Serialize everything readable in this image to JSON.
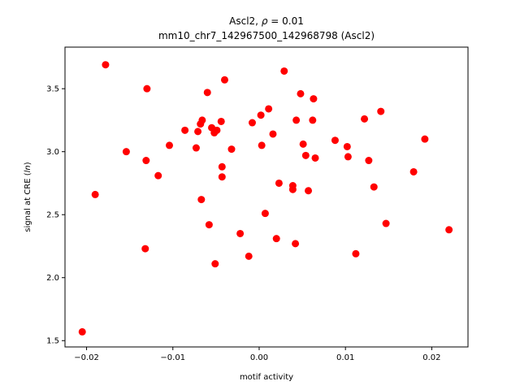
{
  "chart_data": {
    "type": "scatter",
    "title_prefix": "Ascl2, ",
    "title_rho": "ρ",
    "title_suffix": " = 0.01",
    "subtitle": "mm10_chr7_142967500_142968798 (Ascl2)",
    "xlabel": "motif activity",
    "ylabel_prefix": "signal at CRE (",
    "ylabel_italic": "ln",
    "ylabel_suffix": ")",
    "xlim": [
      -0.0225,
      0.0242
    ],
    "ylim": [
      1.45,
      3.83
    ],
    "xticks": [
      {
        "value": -0.02,
        "label": "−0.02"
      },
      {
        "value": -0.01,
        "label": "−0.01"
      },
      {
        "value": 0.0,
        "label": "0.00"
      },
      {
        "value": 0.01,
        "label": "0.01"
      },
      {
        "value": 0.02,
        "label": "0.02"
      }
    ],
    "yticks": [
      {
        "value": 1.5,
        "label": "1.5"
      },
      {
        "value": 2.0,
        "label": "2.0"
      },
      {
        "value": 2.5,
        "label": "2.5"
      },
      {
        "value": 3.0,
        "label": "3.0"
      },
      {
        "value": 3.5,
        "label": "3.5"
      }
    ],
    "grid": false,
    "marker_color": "#ff0000",
    "points": [
      {
        "x": -0.0205,
        "y": 1.57
      },
      {
        "x": -0.019,
        "y": 2.66
      },
      {
        "x": -0.0178,
        "y": 3.69
      },
      {
        "x": -0.0154,
        "y": 3.0
      },
      {
        "x": -0.013,
        "y": 3.5
      },
      {
        "x": -0.0131,
        "y": 2.93
      },
      {
        "x": -0.0132,
        "y": 2.23
      },
      {
        "x": -0.0117,
        "y": 2.81
      },
      {
        "x": -0.0104,
        "y": 3.05
      },
      {
        "x": -0.0086,
        "y": 3.17
      },
      {
        "x": -0.0073,
        "y": 3.03
      },
      {
        "x": -0.0071,
        "y": 3.16
      },
      {
        "x": -0.0068,
        "y": 3.22
      },
      {
        "x": -0.0066,
        "y": 3.25
      },
      {
        "x": -0.0067,
        "y": 2.62
      },
      {
        "x": -0.006,
        "y": 3.47
      },
      {
        "x": -0.0058,
        "y": 2.42
      },
      {
        "x": -0.0055,
        "y": 3.19
      },
      {
        "x": -0.0052,
        "y": 3.15
      },
      {
        "x": -0.0049,
        "y": 3.17
      },
      {
        "x": -0.0051,
        "y": 2.11
      },
      {
        "x": -0.0044,
        "y": 3.24
      },
      {
        "x": -0.0043,
        "y": 2.88
      },
      {
        "x": -0.0043,
        "y": 2.8
      },
      {
        "x": -0.004,
        "y": 3.57
      },
      {
        "x": -0.0032,
        "y": 3.02
      },
      {
        "x": -0.0022,
        "y": 2.35
      },
      {
        "x": -0.0012,
        "y": 2.17
      },
      {
        "x": -0.0008,
        "y": 3.23
      },
      {
        "x": 0.0002,
        "y": 3.29
      },
      {
        "x": 0.0003,
        "y": 3.05
      },
      {
        "x": 0.0007,
        "y": 2.51
      },
      {
        "x": 0.0011,
        "y": 3.34
      },
      {
        "x": 0.0016,
        "y": 3.14
      },
      {
        "x": 0.002,
        "y": 2.31
      },
      {
        "x": 0.0023,
        "y": 2.75
      },
      {
        "x": 0.0029,
        "y": 3.64
      },
      {
        "x": 0.0039,
        "y": 2.73
      },
      {
        "x": 0.0039,
        "y": 2.7
      },
      {
        "x": 0.0042,
        "y": 2.27
      },
      {
        "x": 0.0043,
        "y": 3.25
      },
      {
        "x": 0.0048,
        "y": 3.46
      },
      {
        "x": 0.0051,
        "y": 3.06
      },
      {
        "x": 0.0054,
        "y": 2.97
      },
      {
        "x": 0.0057,
        "y": 2.69
      },
      {
        "x": 0.0062,
        "y": 3.25
      },
      {
        "x": 0.0063,
        "y": 3.42
      },
      {
        "x": 0.0065,
        "y": 2.95
      },
      {
        "x": 0.0088,
        "y": 3.09
      },
      {
        "x": 0.0102,
        "y": 3.04
      },
      {
        "x": 0.0103,
        "y": 2.96
      },
      {
        "x": 0.0112,
        "y": 2.19
      },
      {
        "x": 0.0122,
        "y": 3.26
      },
      {
        "x": 0.0127,
        "y": 2.93
      },
      {
        "x": 0.0133,
        "y": 2.72
      },
      {
        "x": 0.0141,
        "y": 3.32
      },
      {
        "x": 0.0147,
        "y": 2.43
      },
      {
        "x": 0.0179,
        "y": 2.84
      },
      {
        "x": 0.0192,
        "y": 3.1
      },
      {
        "x": 0.022,
        "y": 2.38
      }
    ]
  }
}
